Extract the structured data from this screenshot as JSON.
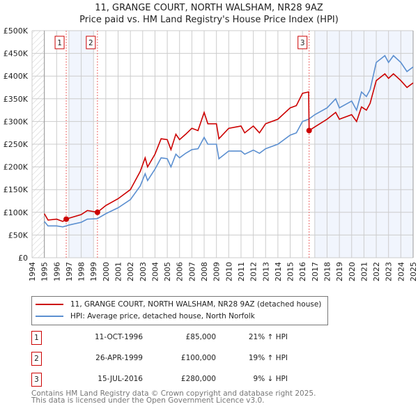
{
  "chart_data": {
    "type": "line",
    "title": "11, GRANGE COURT, NORTH WALSHAM, NR28 9AZ",
    "subtitle": "Price paid vs. HM Land Registry's House Price Index (HPI)",
    "xlim": [
      1994,
      2025
    ],
    "ylim": [
      0,
      500000
    ],
    "x_ticks": [
      "1994",
      "1995",
      "1996",
      "1997",
      "1998",
      "1999",
      "2000",
      "2001",
      "2002",
      "2003",
      "2004",
      "2005",
      "2006",
      "2007",
      "2008",
      "2009",
      "2010",
      "2011",
      "2012",
      "2013",
      "2014",
      "2015",
      "2016",
      "2017",
      "2018",
      "2019",
      "2020",
      "2021",
      "2022",
      "2023",
      "2024",
      "2025"
    ],
    "y_ticks": [
      {
        "v": 0,
        "label": "£0"
      },
      {
        "v": 50000,
        "label": "£50K"
      },
      {
        "v": 100000,
        "label": "£100K"
      },
      {
        "v": 150000,
        "label": "£150K"
      },
      {
        "v": 200000,
        "label": "£200K"
      },
      {
        "v": 250000,
        "label": "£250K"
      },
      {
        "v": 300000,
        "label": "£300K"
      },
      {
        "v": 350000,
        "label": "£350K"
      },
      {
        "v": 400000,
        "label": "£400K"
      },
      {
        "v": 450000,
        "label": "£450K"
      },
      {
        "v": 500000,
        "label": "£500K"
      }
    ],
    "grid": true,
    "series": [
      {
        "name": "11, GRANGE COURT, NORTH WALSHAM, NR28 9AZ (detached house)",
        "color": "#cc0000",
        "x": [
          1995.0,
          1995.3,
          1996,
          1996.5,
          1996.78,
          1997,
          1998,
          1998.5,
          1999.32,
          2000,
          2001,
          2002,
          2002.8,
          2003.2,
          2003.4,
          2004,
          2004.5,
          2005,
          2005.3,
          2005.7,
          2006,
          2006.5,
          2007,
          2007.5,
          2008,
          2008.3,
          2009,
          2009.2,
          2010,
          2011,
          2011.3,
          2012,
          2012.5,
          2013,
          2014,
          2015,
          2015.5,
          2016,
          2016.5,
          2016.54,
          2017,
          2018,
          2018.7,
          2019,
          2020,
          2020.4,
          2020.8,
          2021.2,
          2021.5,
          2022,
          2022.7,
          2023,
          2023.4,
          2024,
          2024.5,
          2025
        ],
        "y": [
          97,
          83,
          85,
          80,
          85,
          87,
          95,
          104,
          100,
          115,
          130,
          150,
          190,
          220,
          200,
          228,
          262,
          260,
          238,
          272,
          260,
          272,
          285,
          280,
          320,
          295,
          295,
          262,
          285,
          290,
          275,
          290,
          275,
          295,
          305,
          330,
          335,
          362,
          365,
          280,
          288,
          305,
          320,
          305,
          315,
          300,
          332,
          325,
          340,
          390,
          405,
          395,
          405,
          390,
          375,
          385
        ]
      },
      {
        "name": "HPI: Average price, detached house, North Norfolk",
        "color": "#5b8fd0",
        "x": [
          1995.0,
          1995.3,
          1996,
          1996.5,
          1997,
          1998,
          1998.5,
          1999.3,
          2000,
          2001,
          2002,
          2002.8,
          2003.2,
          2003.4,
          2004,
          2004.5,
          2005,
          2005.3,
          2005.7,
          2006,
          2006.5,
          2007,
          2007.5,
          2008,
          2008.3,
          2009,
          2009.2,
          2010,
          2011,
          2011.3,
          2012,
          2012.5,
          2013,
          2014,
          2015,
          2015.5,
          2016,
          2016.5,
          2017,
          2018,
          2018.7,
          2019,
          2020,
          2020.4,
          2020.8,
          2021.2,
          2021.5,
          2022,
          2022.7,
          2023,
          2023.4,
          2024,
          2024.5,
          2025
        ],
        "y": [
          80,
          70,
          70,
          68,
          72,
          78,
          85,
          86,
          97,
          110,
          128,
          158,
          185,
          170,
          195,
          220,
          218,
          200,
          228,
          220,
          230,
          238,
          240,
          265,
          250,
          250,
          218,
          235,
          235,
          228,
          237,
          230,
          240,
          250,
          270,
          275,
          300,
          305,
          315,
          330,
          350,
          330,
          345,
          325,
          365,
          355,
          370,
          430,
          445,
          430,
          445,
          430,
          410,
          420
        ]
      }
    ],
    "y_units": "thousands GBP",
    "sales": [
      {
        "n": "1",
        "x": 1996.78,
        "y": 85,
        "date": "11-OCT-1996",
        "price": "£85,000",
        "hpi": "21% ↑ HPI"
      },
      {
        "n": "2",
        "x": 1999.32,
        "y": 100,
        "date": "26-APR-1999",
        "price": "£100,000",
        "hpi": "19% ↑ HPI"
      },
      {
        "n": "3",
        "x": 2016.54,
        "y": 280,
        "date": "15-JUL-2016",
        "price": "£280,000",
        "hpi": "9% ↓ HPI"
      }
    ],
    "shaded_ranges": [
      [
        1997.0,
        1999.0
      ],
      [
        2017.0,
        2025
      ]
    ],
    "hatched_range": [
      1994,
      1995
    ]
  },
  "legend": {
    "property": "11, GRANGE COURT, NORTH WALSHAM, NR28 9AZ (detached house)",
    "hpi": "HPI: Average price, detached house, North Norfolk"
  },
  "footer": {
    "line1": "Contains HM Land Registry data © Crown copyright and database right 2025.",
    "line2": "This data is licensed under the Open Government Licence v3.0."
  }
}
